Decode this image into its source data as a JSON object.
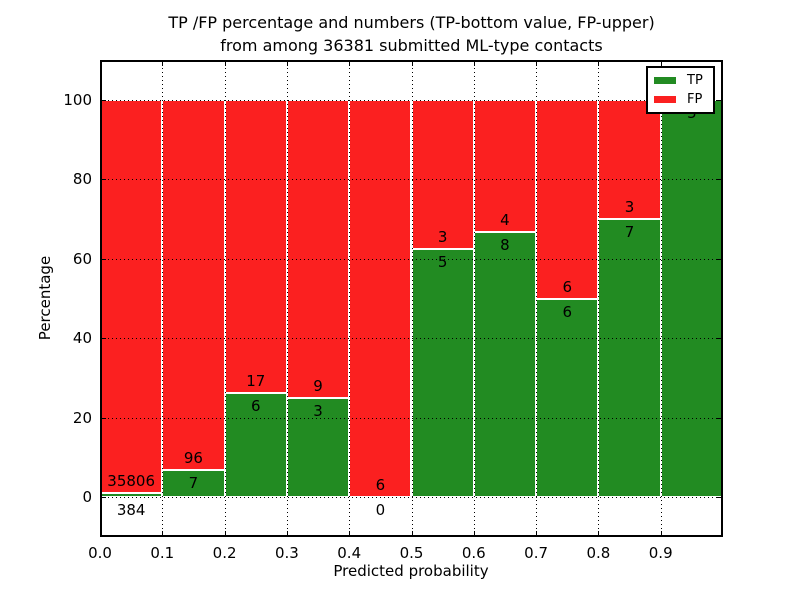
{
  "title": {
    "line1": "TP /FP percentage and numbers (TP-bottom value, FP-upper)",
    "line2": "from among 36381 submitted ML-type contacts"
  },
  "x_axis": {
    "label": "Predicted probability",
    "ticks": [
      "0.0",
      "0.1",
      "0.2",
      "0.3",
      "0.4",
      "0.5",
      "0.6",
      "0.7",
      "0.8",
      "0.9"
    ]
  },
  "y_axis": {
    "label": "Percentage",
    "ticks": [
      "0",
      "20",
      "40",
      "60",
      "80",
      "100"
    ]
  },
  "legend": {
    "items": [
      {
        "label": "TP",
        "color": "#228b22"
      },
      {
        "label": "FP",
        "color": "#fb2020"
      }
    ]
  },
  "chart_data": {
    "type": "bar",
    "stacked": true,
    "title": "TP /FP percentage and numbers (TP-bottom value, FP-upper) from among 36381 submitted ML-type contacts",
    "xlabel": "Predicted probability",
    "ylabel": "Percentage",
    "total_contacts": 36381,
    "bin_edges": [
      0.0,
      0.1,
      0.2,
      0.3,
      0.4,
      0.5,
      0.6,
      0.7,
      0.8,
      0.9,
      1.0
    ],
    "x_tick_values": [
      0.0,
      0.1,
      0.2,
      0.3,
      0.4,
      0.5,
      0.6,
      0.7,
      0.8,
      0.9
    ],
    "y_tick_values": [
      0,
      20,
      40,
      60,
      80,
      100
    ],
    "series": [
      {
        "name": "TP",
        "color": "#228b22",
        "counts": [
          384,
          7,
          6,
          3,
          0,
          5,
          8,
          6,
          7,
          5
        ],
        "percent": [
          1.06,
          6.8,
          26.09,
          25.0,
          0.0,
          62.5,
          66.67,
          50.0,
          70.0,
          100.0
        ]
      },
      {
        "name": "FP",
        "color": "#fb2020",
        "counts": [
          35806,
          96,
          17,
          9,
          6,
          3,
          4,
          6,
          3,
          0
        ],
        "percent": [
          98.94,
          93.2,
          73.91,
          75.0,
          100.0,
          37.5,
          33.33,
          50.0,
          30.0,
          0.0
        ]
      }
    ],
    "bar_value_labels": {
      "tp": [
        "384",
        "7",
        "6",
        "3",
        "0",
        "5",
        "8",
        "6",
        "7",
        "5"
      ],
      "fp": [
        "35806",
        "96",
        "17",
        "9",
        "6",
        "3",
        "4",
        "6",
        "3",
        "0"
      ]
    },
    "xlim": [
      0.0,
      1.0
    ],
    "ylim": [
      -11,
      110
    ],
    "grid": true,
    "grid_style": "dotted",
    "legend_position": "upper right"
  }
}
